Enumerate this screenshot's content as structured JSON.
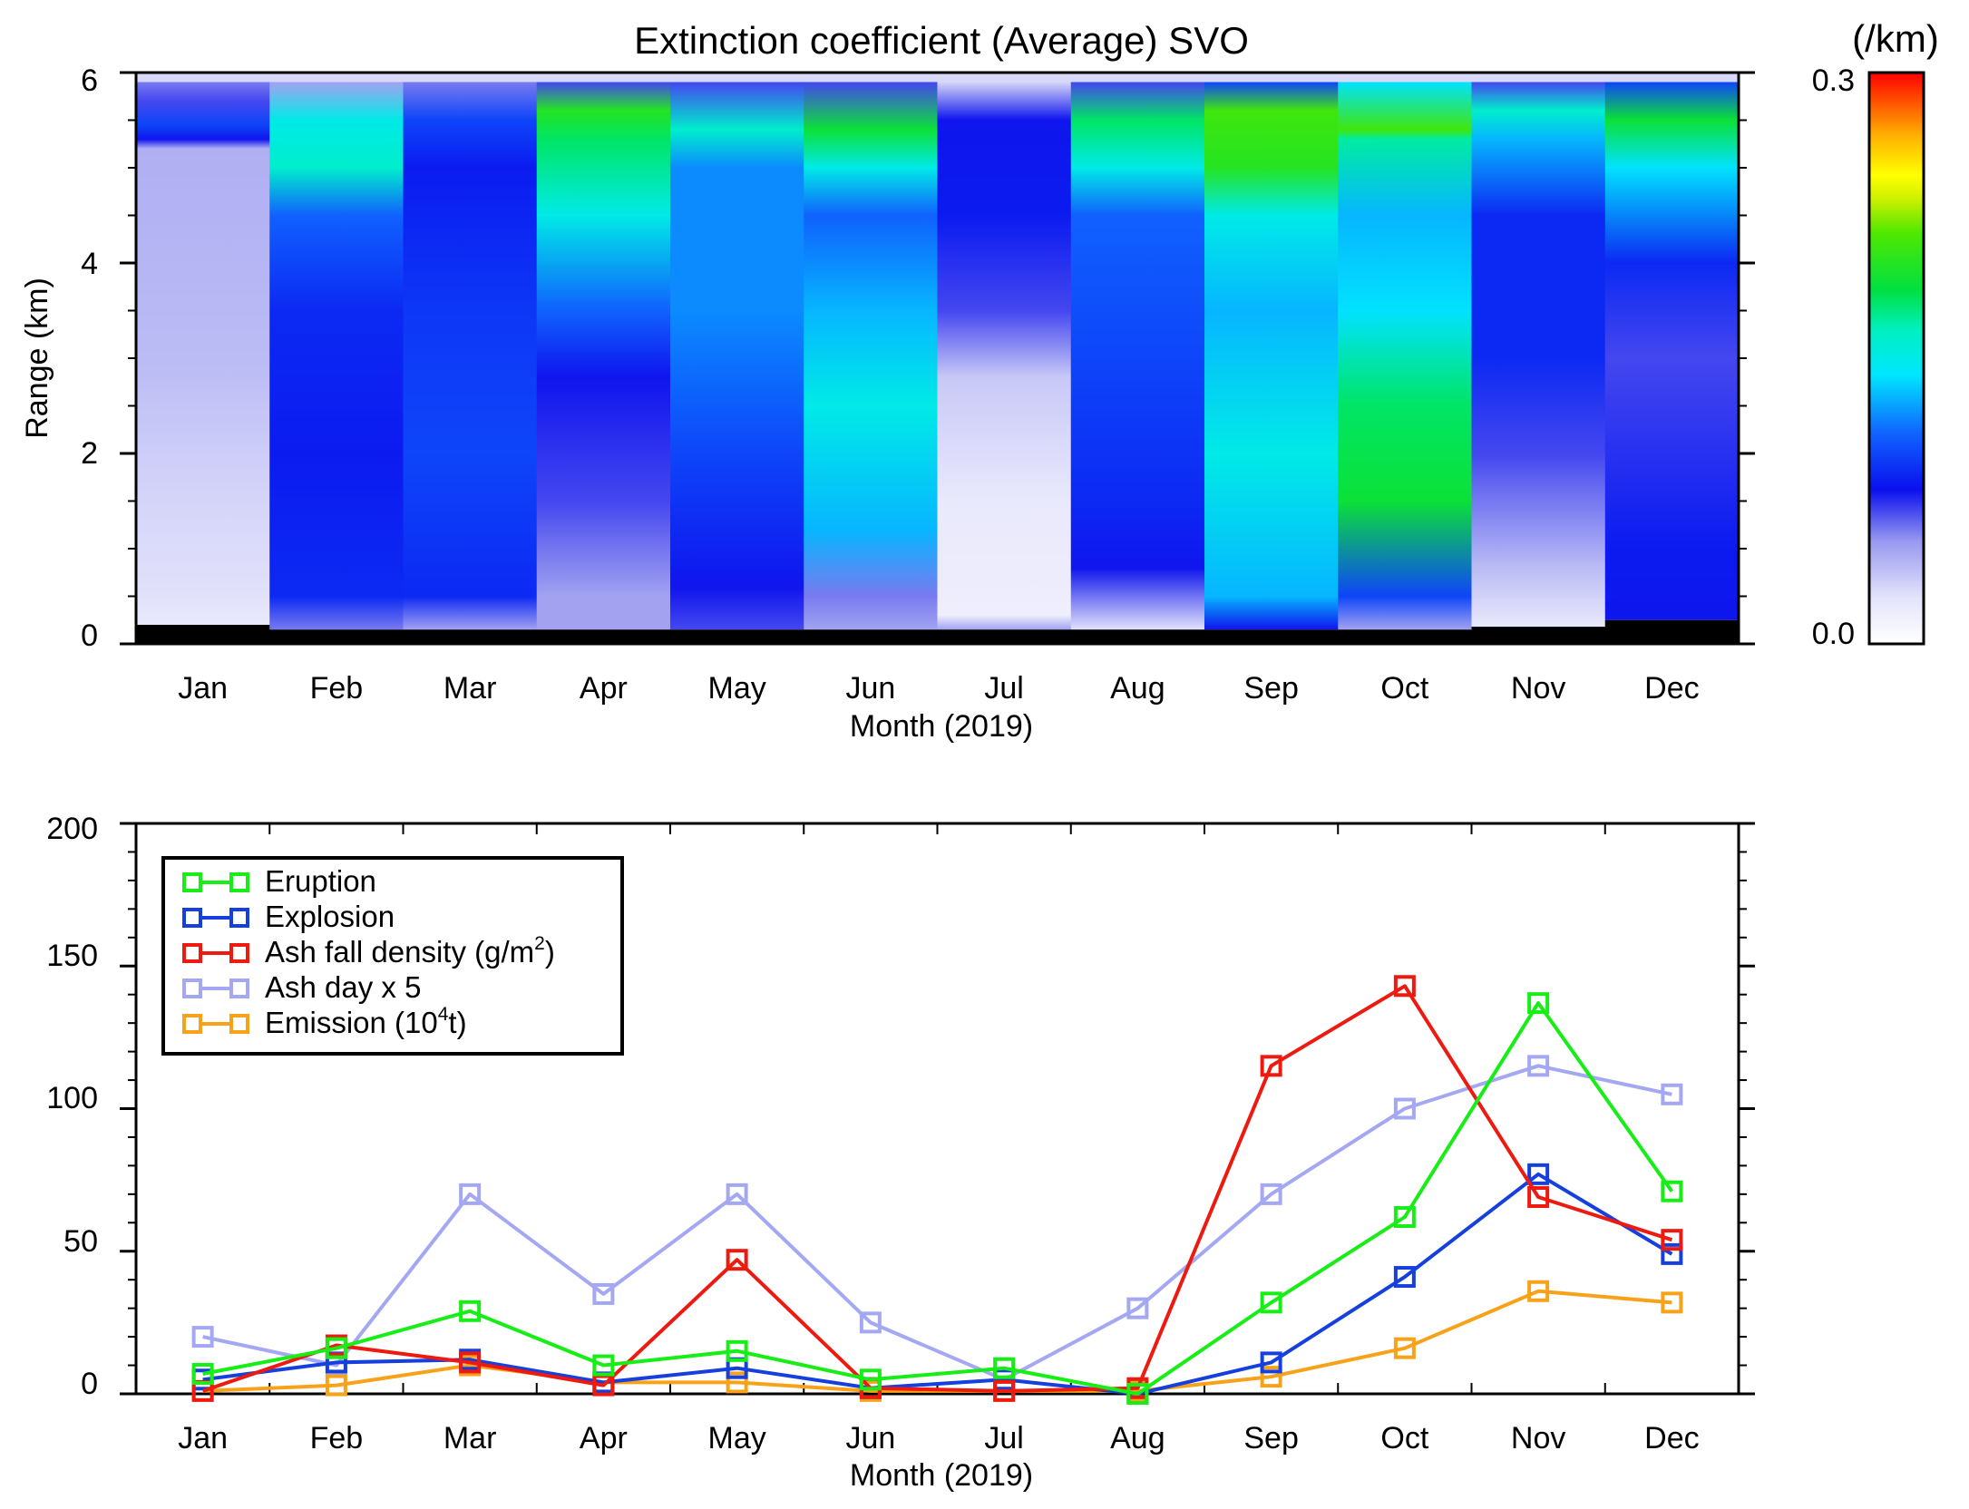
{
  "top_chart": {
    "title": "Extinction coefficient (Average) SVO",
    "ylabel": "Range (km)",
    "xlabel": "Month (2019)",
    "yticks": [
      "0",
      "2",
      "4",
      "6"
    ],
    "months": [
      "Jan",
      "Feb",
      "Mar",
      "Apr",
      "May",
      "Jun",
      "Jul",
      "Aug",
      "Sep",
      "Oct",
      "Nov",
      "Dec"
    ],
    "colorbar": {
      "unit": "(/km)",
      "min_label": "0.0",
      "max_label": "0.3",
      "min": 0.0,
      "max": 0.3
    }
  },
  "bottom_chart": {
    "xlabel": "Month (2019)",
    "yticks": [
      "0",
      "50",
      "100",
      "150",
      "200"
    ],
    "months": [
      "Jan",
      "Feb",
      "Mar",
      "Apr",
      "May",
      "Jun",
      "Jul",
      "Aug",
      "Sep",
      "Oct",
      "Nov",
      "Dec"
    ],
    "legend": {
      "eruption": "Eruption",
      "explosion": "Explosion",
      "ash_fall_pre": "Ash fall density (g/m",
      "ash_fall_sup": "2",
      "ash_fall_post": ")",
      "ash_day": "Ash day x 5",
      "emission_pre": "Emission (10",
      "emission_sup": "4",
      "emission_post": "t)"
    }
  },
  "colors": {
    "eruption": "#16ee16",
    "explosion": "#1640dd",
    "ash_fall": "#ee1a10",
    "ash_day": "#a4a8f2",
    "emission": "#f8a21a"
  },
  "chart_data": [
    {
      "type": "heatmap",
      "title": "Extinction coefficient (Average) SVO",
      "xlabel": "Month (2019)",
      "ylabel": "Range (km)",
      "ylim": [
        0,
        6
      ],
      "colorbar_range": [
        0.0,
        0.3
      ],
      "colorbar_unit": "/km",
      "categories": [
        "Jan",
        "Feb",
        "Mar",
        "Apr",
        "May",
        "Jun",
        "Jul",
        "Aug",
        "Sep",
        "Oct",
        "Nov",
        "Dec"
      ],
      "ground_top_km": [
        0.2,
        0.15,
        0.15,
        0.15,
        0.15,
        0.15,
        0.15,
        0.15,
        0.15,
        0.15,
        0.18,
        0.25
      ],
      "profiles": [
        [
          [
            0.2,
            0.02
          ],
          [
            0.5,
            0.025
          ],
          [
            1.5,
            0.03
          ],
          [
            3.0,
            0.04
          ],
          [
            5.2,
            0.045
          ],
          [
            5.3,
            0.08
          ],
          [
            5.45,
            0.1
          ],
          [
            5.7,
            0.07
          ],
          [
            5.9,
            0.06
          ]
        ],
        [
          [
            0.15,
            0.06
          ],
          [
            0.5,
            0.09
          ],
          [
            2.0,
            0.085
          ],
          [
            3.5,
            0.09
          ],
          [
            4.5,
            0.11
          ],
          [
            5.0,
            0.16
          ],
          [
            5.5,
            0.15
          ],
          [
            5.9,
            0.05
          ]
        ],
        [
          [
            0.15,
            0.05
          ],
          [
            0.5,
            0.09
          ],
          [
            2.0,
            0.1
          ],
          [
            3.5,
            0.095
          ],
          [
            5.0,
            0.085
          ],
          [
            5.5,
            0.1
          ],
          [
            5.9,
            0.06
          ]
        ],
        [
          [
            0.15,
            0.05
          ],
          [
            0.5,
            0.05
          ],
          [
            1.5,
            0.07
          ],
          [
            2.8,
            0.08
          ],
          [
            3.5,
            0.11
          ],
          [
            4.5,
            0.15
          ],
          [
            5.3,
            0.18
          ],
          [
            5.6,
            0.2
          ],
          [
            5.9,
            0.07
          ]
        ],
        [
          [
            0.15,
            0.07
          ],
          [
            0.6,
            0.08
          ],
          [
            2.0,
            0.1
          ],
          [
            3.5,
            0.12
          ],
          [
            5.0,
            0.12
          ],
          [
            5.4,
            0.16
          ],
          [
            5.9,
            0.07
          ]
        ],
        [
          [
            0.15,
            0.05
          ],
          [
            0.5,
            0.06
          ],
          [
            1.2,
            0.13
          ],
          [
            2.5,
            0.15
          ],
          [
            3.5,
            0.13
          ],
          [
            4.5,
            0.11
          ],
          [
            5.0,
            0.15
          ],
          [
            5.4,
            0.19
          ],
          [
            5.9,
            0.07
          ]
        ],
        [
          [
            0.15,
            0.05
          ],
          [
            0.3,
            0.015
          ],
          [
            1.5,
            0.02
          ],
          [
            2.8,
            0.035
          ],
          [
            3.5,
            0.07
          ],
          [
            4.5,
            0.085
          ],
          [
            5.5,
            0.08
          ],
          [
            5.9,
            0.03
          ]
        ],
        [
          [
            0.15,
            0.025
          ],
          [
            0.8,
            0.08
          ],
          [
            1.5,
            0.09
          ],
          [
            3.0,
            0.1
          ],
          [
            4.5,
            0.11
          ],
          [
            5.0,
            0.15
          ],
          [
            5.5,
            0.18
          ],
          [
            5.9,
            0.07
          ]
        ],
        [
          [
            0.15,
            0.08
          ],
          [
            0.5,
            0.13
          ],
          [
            2.0,
            0.15
          ],
          [
            3.5,
            0.13
          ],
          [
            4.5,
            0.15
          ],
          [
            5.0,
            0.2
          ],
          [
            5.6,
            0.21
          ],
          [
            5.9,
            0.1
          ]
        ],
        [
          [
            0.15,
            0.05
          ],
          [
            0.5,
            0.1
          ],
          [
            1.5,
            0.19
          ],
          [
            2.5,
            0.18
          ],
          [
            3.5,
            0.14
          ],
          [
            4.5,
            0.13
          ],
          [
            5.3,
            0.17
          ],
          [
            5.4,
            0.21
          ],
          [
            5.9,
            0.14
          ]
        ],
        [
          [
            0.18,
            0.02
          ],
          [
            0.8,
            0.04
          ],
          [
            2.0,
            0.07
          ],
          [
            3.0,
            0.09
          ],
          [
            4.5,
            0.09
          ],
          [
            5.3,
            0.13
          ],
          [
            5.6,
            0.16
          ],
          [
            5.9,
            0.07
          ]
        ],
        [
          [
            0.25,
            0.08
          ],
          [
            1.0,
            0.085
          ],
          [
            3.0,
            0.07
          ],
          [
            4.0,
            0.09
          ],
          [
            5.0,
            0.14
          ],
          [
            5.5,
            0.19
          ],
          [
            5.9,
            0.1
          ]
        ]
      ]
    },
    {
      "type": "line",
      "xlabel": "Month (2019)",
      "ylabel": "",
      "ylim": [
        0,
        200
      ],
      "categories": [
        "Jan",
        "Feb",
        "Mar",
        "Apr",
        "May",
        "Jun",
        "Jul",
        "Aug",
        "Sep",
        "Oct",
        "Nov",
        "Dec"
      ],
      "series": [
        {
          "key": "eruption",
          "name": "Eruption",
          "values": [
            7,
            16,
            29,
            10,
            15,
            5,
            9,
            0,
            32,
            62,
            137,
            71
          ]
        },
        {
          "key": "explosion",
          "name": "Explosion",
          "values": [
            5,
            11,
            12,
            4,
            9,
            2,
            5,
            0,
            11,
            41,
            77,
            49
          ]
        },
        {
          "key": "ash_fall",
          "name": "Ash fall density (g/m2)",
          "values": [
            1,
            17,
            11,
            3,
            47,
            2,
            1,
            2,
            115,
            143,
            69,
            54
          ]
        },
        {
          "key": "ash_day",
          "name": "Ash day x 5",
          "values": [
            20,
            10,
            70,
            35,
            70,
            25,
            5,
            30,
            70,
            100,
            115,
            105
          ]
        },
        {
          "key": "emission",
          "name": "Emission (10^4 t)",
          "values": [
            1,
            3,
            10,
            4,
            4,
            1,
            1,
            1,
            6,
            16,
            36,
            32
          ]
        }
      ]
    }
  ]
}
